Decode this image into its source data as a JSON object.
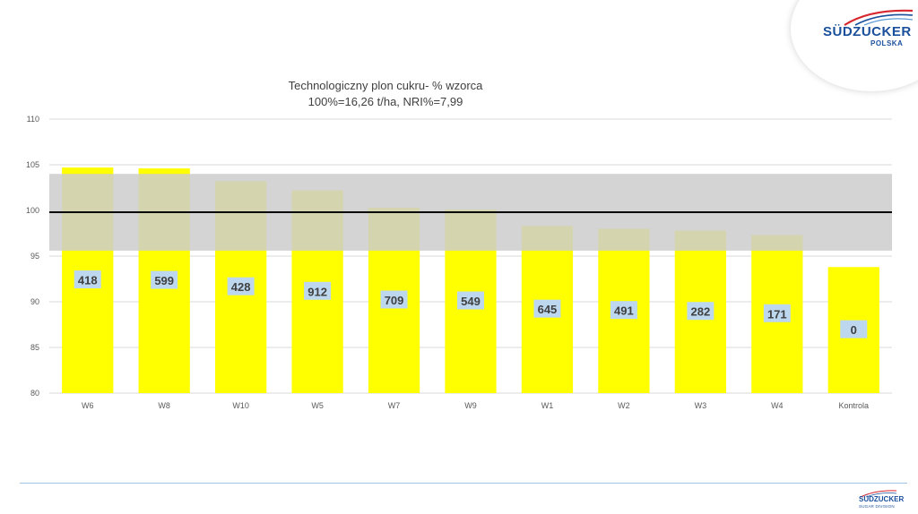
{
  "logo": {
    "brand": "SÜDZUCKER",
    "sub": "POLSKA"
  },
  "footer_logo": {
    "brand": "SÜDZUCKER",
    "sub": "SUGAR DIVISION"
  },
  "colors": {
    "bar": "#ffff00",
    "band": "#cccccc",
    "reference_line": "#000000",
    "label_box": "#bdd7ee",
    "label_text": "#404040"
  },
  "chart_data": {
    "type": "bar",
    "title": "Technologiczny plon cukru- % wzorca",
    "subtitle": "100%=16,26  t/ha, NRI%=7,99",
    "categories": [
      "W6",
      "W8",
      "W10",
      "W5",
      "W7",
      "W9",
      "W1",
      "W2",
      "W3",
      "W4",
      "Kontrola"
    ],
    "values": [
      104.7,
      104.6,
      103.2,
      102.2,
      100.3,
      100.1,
      98.3,
      98.0,
      97.8,
      97.3,
      93.8
    ],
    "data_labels": [
      "418",
      "599",
      "428",
      "912",
      "709",
      "549",
      "645",
      "491",
      "282",
      "171",
      "0"
    ],
    "ylim": [
      80,
      110
    ],
    "yticks": [
      80,
      85,
      90,
      95,
      100,
      105,
      110
    ],
    "reference_line": 99.8,
    "band": [
      95.6,
      104.0
    ],
    "grid": true
  }
}
